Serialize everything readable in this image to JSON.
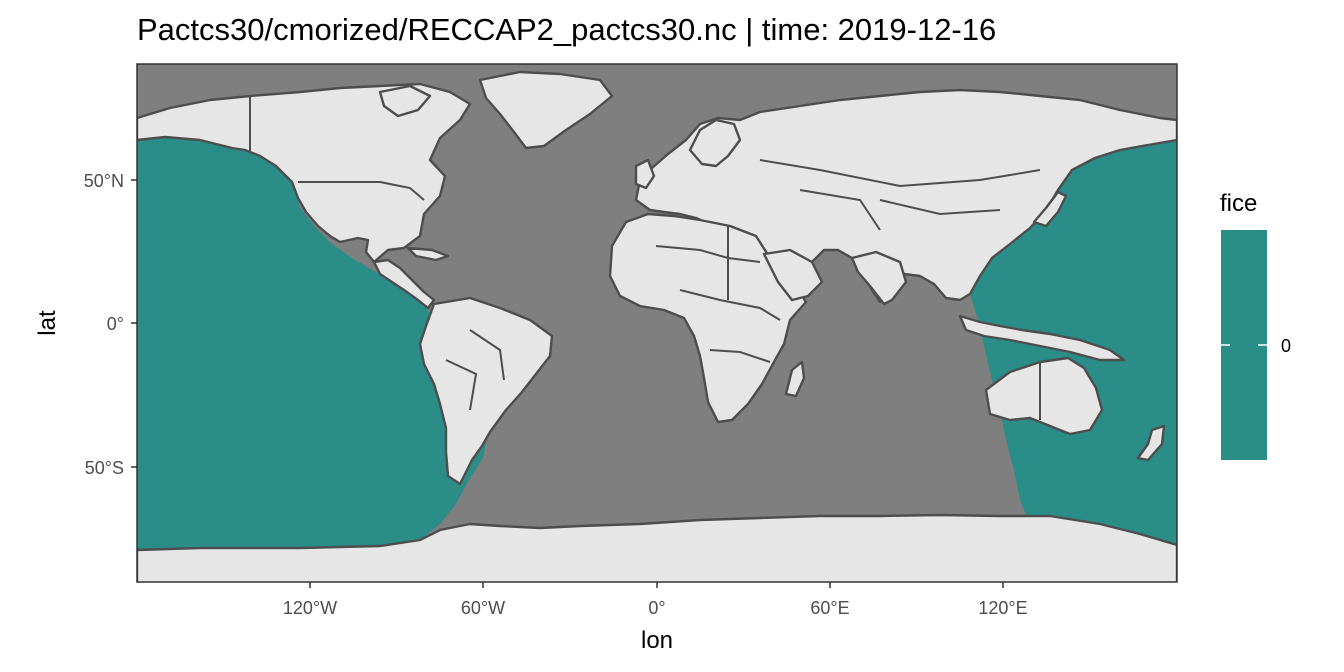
{
  "title": "Pactcs30/cmorized/RECCAP2_pactcs30.nc | time:  2019-12-16",
  "x_axis": {
    "label": "lon",
    "ticks": [
      "120°W",
      "60°W",
      "0°",
      "60°E",
      "120°E"
    ]
  },
  "y_axis": {
    "label": "lat",
    "ticks": [
      "50°N",
      "0°",
      "50°S"
    ]
  },
  "legend": {
    "title": "fice",
    "labels": [
      "0"
    ]
  },
  "colors": {
    "ocean_missing": "#7f7f7f",
    "fice_fill": "#2a8d88",
    "land": "#e6e6e6",
    "outline": "#4d4d4d"
  },
  "chart_data": {
    "type": "map",
    "projection": "equirectangular",
    "variable": "fice",
    "file": "Pactcs30/cmorized/RECCAP2_pactcs30.nc",
    "time": "2019-12-16",
    "xlim": [
      -180,
      180
    ],
    "ylim": [
      -90,
      90
    ],
    "x_ticks": [
      -120,
      -60,
      0,
      60,
      120
    ],
    "y_ticks": [
      50,
      0,
      -50
    ],
    "value_range": [
      0,
      0
    ],
    "region": "Pacific Ocean basin (fice = 0 throughout), other oceans missing"
  }
}
